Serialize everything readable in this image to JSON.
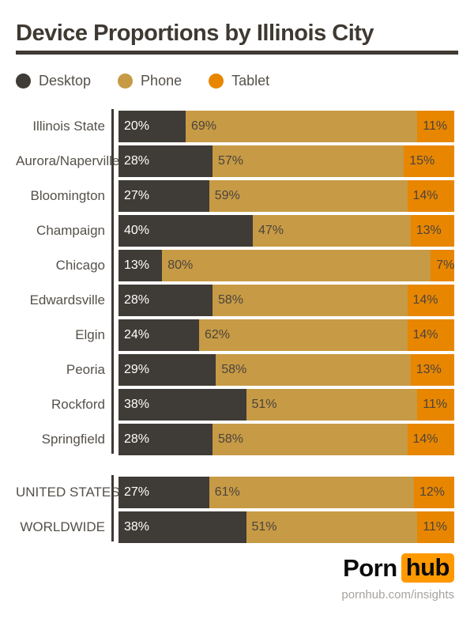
{
  "title": "Device Proportions by Illinois City",
  "legend": [
    {
      "label": "Desktop",
      "color": "#3F3B36"
    },
    {
      "label": "Phone",
      "color": "#C79A45"
    },
    {
      "label": "Tablet",
      "color": "#E88600"
    }
  ],
  "colors": {
    "desktop": "#3F3B36",
    "phone": "#C79A45",
    "tablet": "#E88600",
    "title_and_axis": "#3E3932",
    "label_text": "#55504A",
    "pct_text_on_light": "#4A443E",
    "pct_text_on_dark": "#FFFFFF",
    "logo_orange": "#FF9900",
    "url_gray": "#A7A29D"
  },
  "chart_data": {
    "type": "bar",
    "orientation": "horizontal",
    "stacked": true,
    "unit": "%",
    "x_range": [
      0,
      100
    ],
    "grid": false,
    "legend_position": "top-left",
    "series_names": [
      "Desktop",
      "Phone",
      "Tablet"
    ],
    "groups": [
      {
        "name": "illinois-cities",
        "rows": [
          {
            "label": "Illinois State",
            "desktop": 20,
            "phone": 69,
            "tablet": 11
          },
          {
            "label": "Aurora/Naperville",
            "desktop": 28,
            "phone": 57,
            "tablet": 15
          },
          {
            "label": "Bloomington",
            "desktop": 27,
            "phone": 59,
            "tablet": 14
          },
          {
            "label": "Champaign",
            "desktop": 40,
            "phone": 47,
            "tablet": 13
          },
          {
            "label": "Chicago",
            "desktop": 13,
            "phone": 80,
            "tablet": 7
          },
          {
            "label": "Edwardsville",
            "desktop": 28,
            "phone": 58,
            "tablet": 14
          },
          {
            "label": "Elgin",
            "desktop": 24,
            "phone": 62,
            "tablet": 14
          },
          {
            "label": "Peoria",
            "desktop": 29,
            "phone": 58,
            "tablet": 13
          },
          {
            "label": "Rockford",
            "desktop": 38,
            "phone": 51,
            "tablet": 11
          },
          {
            "label": "Springfield",
            "desktop": 28,
            "phone": 58,
            "tablet": 14
          }
        ]
      },
      {
        "name": "benchmarks",
        "rows": [
          {
            "label": "UNITED STATES",
            "desktop": 27,
            "phone": 61,
            "tablet": 12
          },
          {
            "label": "WORLDWIDE",
            "desktop": 38,
            "phone": 51,
            "tablet": 11
          }
        ]
      }
    ]
  },
  "footer": {
    "logo_text_1": "Porn",
    "logo_text_2": "hub",
    "url": "pornhub.com/insights"
  }
}
